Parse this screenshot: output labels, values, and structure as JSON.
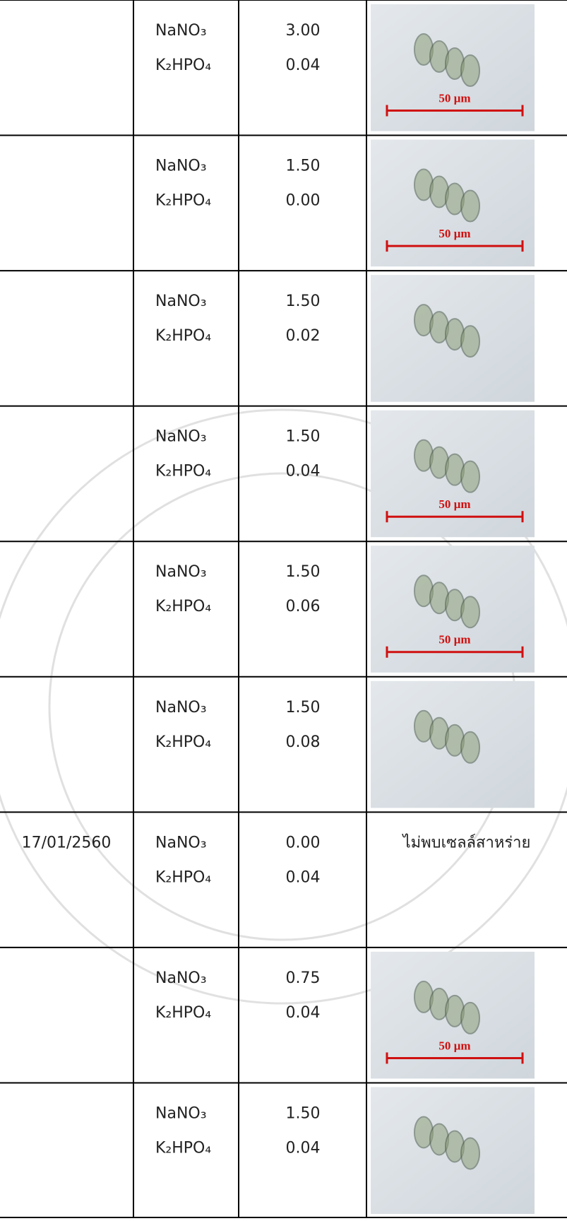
{
  "table": {
    "rows": [
      {
        "date": null,
        "chemicals": [
          {
            "name": "NaNO₃",
            "value": "3.00"
          },
          {
            "name": "K₂HPO₄",
            "value": "0.04"
          }
        ],
        "image": {
          "scale_label": "50 µm"
        }
      },
      {
        "date": null,
        "chemicals": [
          {
            "name": "NaNO₃",
            "value": "1.50"
          },
          {
            "name": "K₂HPO₄",
            "value": "0.00"
          }
        ],
        "image": {
          "scale_label": "50 µm"
        }
      },
      {
        "date": null,
        "chemicals": [
          {
            "name": "NaNO₃",
            "value": "1.50"
          },
          {
            "name": "K₂HPO₄",
            "value": "0.02"
          }
        ],
        "image": {}
      },
      {
        "date": null,
        "chemicals": [
          {
            "name": "NaNO₃",
            "value": "1.50"
          },
          {
            "name": "K₂HPO₄",
            "value": "0.04"
          }
        ],
        "image": {
          "scale_label": "50 µm"
        }
      },
      {
        "date": null,
        "chemicals": [
          {
            "name": "NaNO₃",
            "value": "1.50"
          },
          {
            "name": "K₂HPO₄",
            "value": "0.06"
          }
        ],
        "image": {
          "scale_label": "50 µm"
        }
      },
      {
        "date": null,
        "chemicals": [
          {
            "name": "NaNO₃",
            "value": "1.50"
          },
          {
            "name": "K₂HPO₄",
            "value": "0.08"
          }
        ],
        "image": {}
      },
      {
        "date": "17/01/2560",
        "chemicals": [
          {
            "name": "NaNO₃",
            "value": "0.00"
          },
          {
            "name": "K₂HPO₄",
            "value": "0.04"
          }
        ],
        "note": "ไม่พบเซลล์สาหร่าย"
      },
      {
        "date": null,
        "chemicals": [
          {
            "name": "NaNO₃",
            "value": "0.75"
          },
          {
            "name": "K₂HPO₄",
            "value": "0.04"
          }
        ],
        "image": {
          "scale_label": "50 µm"
        }
      },
      {
        "date": null,
        "chemicals": [
          {
            "name": "NaNO₃",
            "value": "1.50"
          },
          {
            "name": "K₂HPO₄",
            "value": "0.04"
          }
        ],
        "image": {}
      }
    ]
  }
}
